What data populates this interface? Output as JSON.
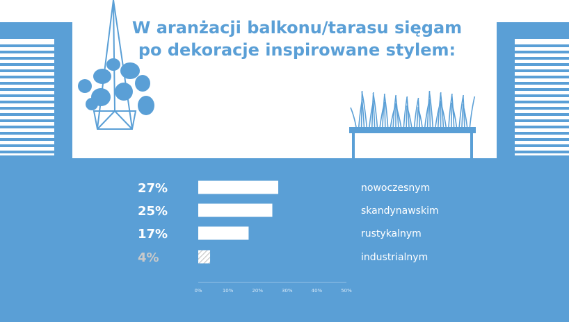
{
  "colors": {
    "background": "#ffffff",
    "panel": "#5a9fd6",
    "accent": "#5a9fd6",
    "bar": "#ffffff",
    "muted": "#c9c9c9"
  },
  "title_lines": [
    "W aranżacji balkonu/tarasu sięgam",
    "po dekoracje inspirowane stylem:"
  ],
  "icons": [
    "hanging-plant-icon",
    "grass-planter-icon",
    "window-shutter-icon"
  ],
  "chart_data": {
    "type": "bar",
    "orientation": "horizontal",
    "title": "W aranżacji balkonu/tarasu sięgam po dekoracje inspirowane stylem:",
    "categories": [
      "nowoczesnym",
      "skandynawskim",
      "rustykalnym",
      "industrialnym"
    ],
    "values": [
      27,
      25,
      17,
      4
    ],
    "value_labels": [
      "27%",
      "25%",
      "17%",
      "4%"
    ],
    "highlight_last_muted": true,
    "xlim": [
      0,
      50
    ],
    "xticks": [
      0,
      10,
      20,
      30,
      40,
      50
    ],
    "xtick_labels": [
      "0%",
      "10%",
      "20%",
      "30%",
      "40%",
      "50%"
    ],
    "grid": false
  }
}
